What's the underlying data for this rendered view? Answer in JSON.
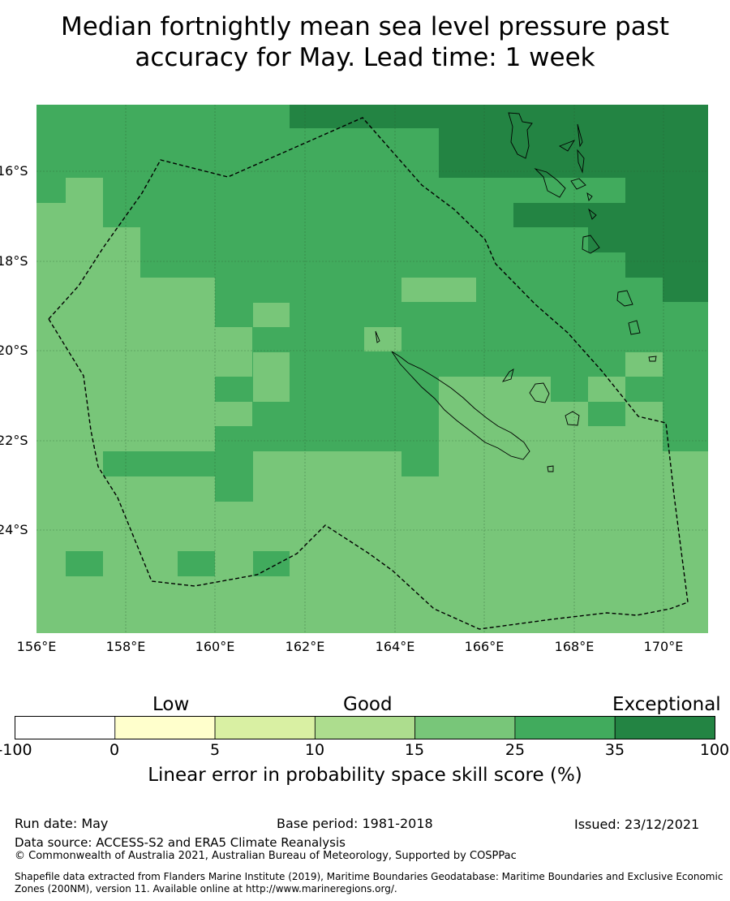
{
  "title_line1": "Median fortnightly mean sea level pressure past",
  "title_line2": "accuracy for May. Lead time: 1 week",
  "lat_labels": [
    "16°S",
    "18°S",
    "20°S",
    "22°S",
    "24°S"
  ],
  "lon_labels": [
    "156°E",
    "158°E",
    "160°E",
    "162°E",
    "164°E",
    "166°E",
    "168°E",
    "170°E"
  ],
  "colorbar": {
    "categories": [
      "Low",
      "Good",
      "Exceptional"
    ],
    "ticks": [
      "-100",
      "0",
      "5",
      "10",
      "15",
      "25",
      "35",
      "100"
    ],
    "colors": [
      "#ffffff",
      "#ffffcc",
      "#d9f0a3",
      "#addd8e",
      "#78c679",
      "#41ab5d",
      "#238443"
    ],
    "title": "Linear error in probability space skill score (%)"
  },
  "footer": {
    "run_date": "Run date: May",
    "base_period": "Base period: 1981-2018",
    "issued": "Issued: 23/12/2021",
    "data_source": "Data source: ACCESS-S2 and ERA5 Climate Reanalysis",
    "copyright": "© Commonwealth of Australia 2021, Australian Bureau of Meteorology, Supported by COSPPac",
    "shapefile": "Shapefile data extracted from Flanders Marine Institute (2019), Maritime Boundaries Geodatabase: Maritime Boundaries and Exclusive Economic Zones (200NM), version 11. Available online at http://www.marineregions.org/."
  },
  "map_colors": {
    "skill_15_25": "#78c679",
    "skill_25_35": "#41ab5d",
    "skill_35_100": "#238443"
  }
}
